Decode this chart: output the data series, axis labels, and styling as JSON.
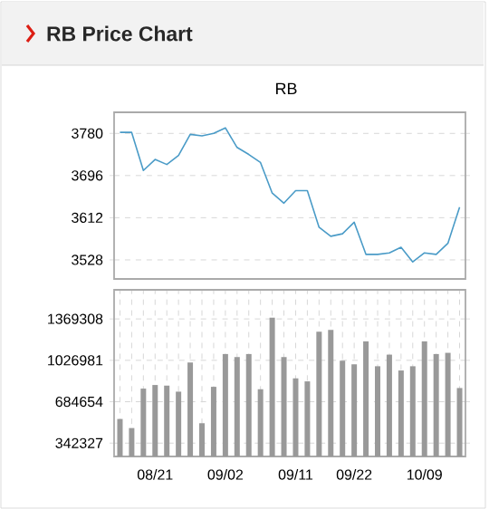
{
  "chart_data": [
    {
      "type": "line",
      "title": "RB Price Chart",
      "subtitle": "RB",
      "categories": [
        null,
        null,
        null,
        null,
        null,
        null,
        null,
        null,
        null,
        null,
        null,
        null,
        null,
        null,
        null,
        null,
        null,
        null,
        null,
        null,
        null,
        null,
        null,
        null,
        null,
        null,
        null,
        null,
        null,
        null
      ],
      "values": [
        3782,
        3782,
        3706,
        3728,
        3718,
        3736,
        3778,
        3775,
        3780,
        3791,
        3752,
        3738,
        3722,
        3661,
        3641,
        3666,
        3666,
        3593,
        3575,
        3580,
        3603,
        3539,
        3539,
        3542,
        3553,
        3524,
        3542,
        3539,
        3561,
        3633
      ],
      "color": "#4a9bc7",
      "ylim": [
        3490,
        3822
      ],
      "yticks": [
        3528,
        3612,
        3696,
        3780
      ],
      "grid": "y",
      "tick_labels": "y"
    },
    {
      "type": "bar",
      "categories": [
        null,
        null,
        null,
        "08/21",
        null,
        null,
        null,
        null,
        null,
        "09/02",
        null,
        null,
        null,
        null,
        null,
        "09/11",
        null,
        null,
        null,
        null,
        "09/22",
        null,
        null,
        null,
        null,
        null,
        "10/09",
        null,
        null,
        null
      ],
      "values": [
        542000,
        467000,
        793000,
        823000,
        818000,
        768000,
        1009000,
        507000,
        808000,
        1079000,
        1054000,
        1079000,
        788000,
        1379000,
        1054000,
        878000,
        853000,
        1264000,
        1279000,
        1024000,
        994000,
        1184000,
        978000,
        1074000,
        943000,
        978000,
        1184000,
        1079000,
        1089000,
        798000
      ],
      "color": "#999999",
      "ylim": [
        232000,
        1610000
      ],
      "yticks": [
        342327,
        684654,
        1026981,
        1369308
      ],
      "grid": true
    }
  ]
}
